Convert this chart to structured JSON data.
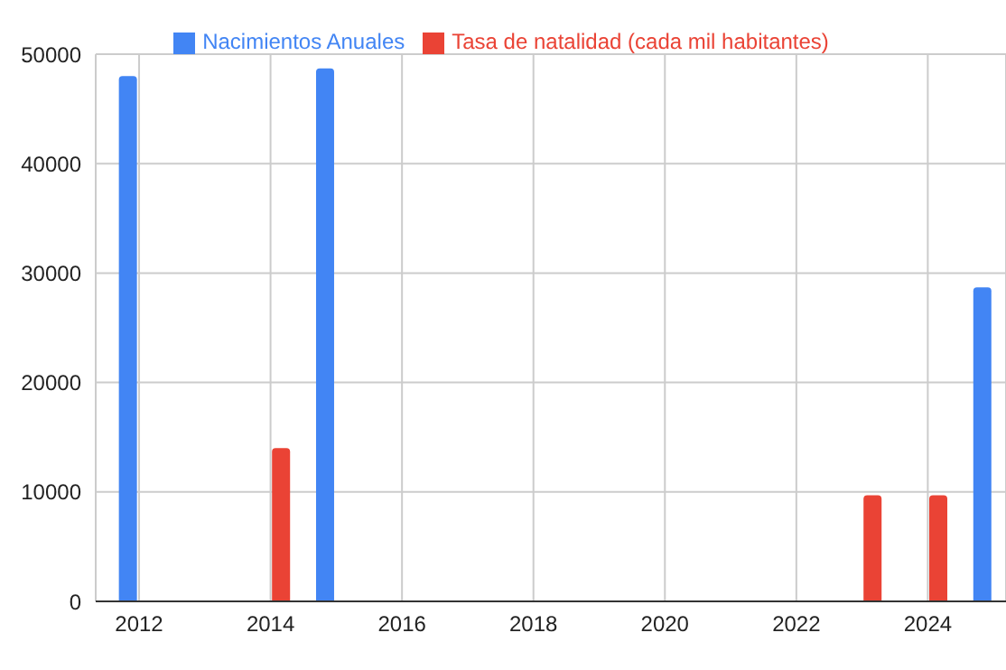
{
  "chart_data": {
    "type": "bar",
    "x": [
      2012,
      2014,
      2015,
      2023,
      2024,
      2025
    ],
    "series": [
      {
        "name": "Nacimientos Anuales",
        "color": "#4285f4",
        "values": [
          48000,
          null,
          48700,
          null,
          null,
          28700
        ]
      },
      {
        "name": "Tasa de natalidad (cada mil habitantes)",
        "color": "#ea4335",
        "values": [
          null,
          14000,
          null,
          9700,
          9700,
          null
        ]
      }
    ],
    "xlim": [
      2011.34,
      2025.19
    ],
    "xticks": [
      2012,
      2014,
      2016,
      2018,
      2020,
      2022,
      2024
    ],
    "ylim": [
      0,
      50000
    ],
    "yticks": [
      0,
      10000,
      20000,
      30000,
      40000,
      50000
    ],
    "grid": true,
    "legend": "top"
  }
}
